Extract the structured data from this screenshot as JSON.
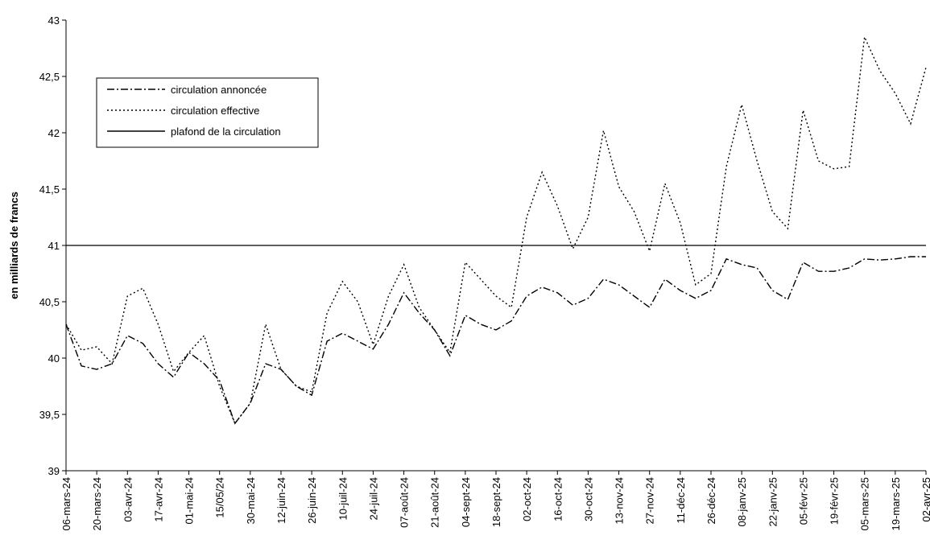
{
  "chart_data": {
    "type": "line",
    "y_label": "en milliards de francs",
    "categories": [
      "06-mars-24",
      null,
      "20-mars-24",
      null,
      "03-avr-24",
      null,
      "17-avr-24",
      null,
      "01-mai-24",
      null,
      "15/05/24",
      null,
      "30-mai-24",
      null,
      "12-juin-24",
      null,
      "26-juin-24",
      null,
      "10-juil-24",
      null,
      "24-juil-24",
      null,
      "07-août-24",
      null,
      "21-août-24",
      null,
      "04-sept-24",
      null,
      "18-sept-24",
      null,
      "02-oct-24",
      null,
      "16-oct-24",
      null,
      "30-oct-24",
      null,
      "13-nov-24",
      null,
      "27-nov-24",
      null,
      "11-déc-24",
      null,
      "26-déc-24",
      null,
      "08-janv-25",
      null,
      "22-janv-25",
      null,
      "05-févr-25",
      null,
      "19-févr-25",
      null,
      "05-mars-25",
      null,
      "19-mars-25",
      null,
      "02-avr-25"
    ],
    "series": [
      {
        "name": "circulation annoncée",
        "color": "#000000",
        "dash": "9 3 2 3",
        "values": [
          40.3,
          39.93,
          39.9,
          39.95,
          40.2,
          40.13,
          39.95,
          39.83,
          40.05,
          39.95,
          39.8,
          39.42,
          39.6,
          39.95,
          39.9,
          39.75,
          39.67,
          40.15,
          40.22,
          40.15,
          40.08,
          40.3,
          40.58,
          40.4,
          40.25,
          40.02,
          40.38,
          40.3,
          40.25,
          40.33,
          40.55,
          40.63,
          40.58,
          40.47,
          40.53,
          40.7,
          40.65,
          40.55,
          40.45,
          40.7,
          40.6,
          40.53,
          40.6,
          40.88,
          40.83,
          40.8,
          40.6,
          40.52,
          40.85,
          40.77,
          40.77,
          40.8,
          40.88,
          40.87,
          40.88,
          40.9,
          40.9
        ]
      },
      {
        "name": "circulation effective",
        "color": "#000000",
        "dash": "2 3",
        "values": [
          40.3,
          40.07,
          40.1,
          39.95,
          40.55,
          40.62,
          40.3,
          39.88,
          40.05,
          40.2,
          39.75,
          39.42,
          39.6,
          40.3,
          39.9,
          39.75,
          39.7,
          40.4,
          40.68,
          40.5,
          40.12,
          40.55,
          40.83,
          40.45,
          40.25,
          40.05,
          40.85,
          40.7,
          40.55,
          40.45,
          41.25,
          41.65,
          41.35,
          40.97,
          41.25,
          42.02,
          41.52,
          41.3,
          40.95,
          41.55,
          41.2,
          40.65,
          40.75,
          41.7,
          42.25,
          41.75,
          41.3,
          41.15,
          42.2,
          41.75,
          41.68,
          41.7,
          42.85,
          42.55,
          42.35,
          42.08,
          42.58
        ]
      }
    ],
    "reference_line": {
      "name": "plafond de la circulation",
      "value": 41,
      "color": "#000000"
    },
    "ylim": [
      39,
      43
    ],
    "yticks": [
      39,
      {
        "value": 39.5,
        "label": "39,5"
      },
      40,
      {
        "value": 40.5,
        "label": "40,5"
      },
      41,
      {
        "value": 41.5,
        "label": "41,5"
      },
      42,
      {
        "value": 42.5,
        "label": "42,5"
      },
      43
    ],
    "grid": false
  }
}
